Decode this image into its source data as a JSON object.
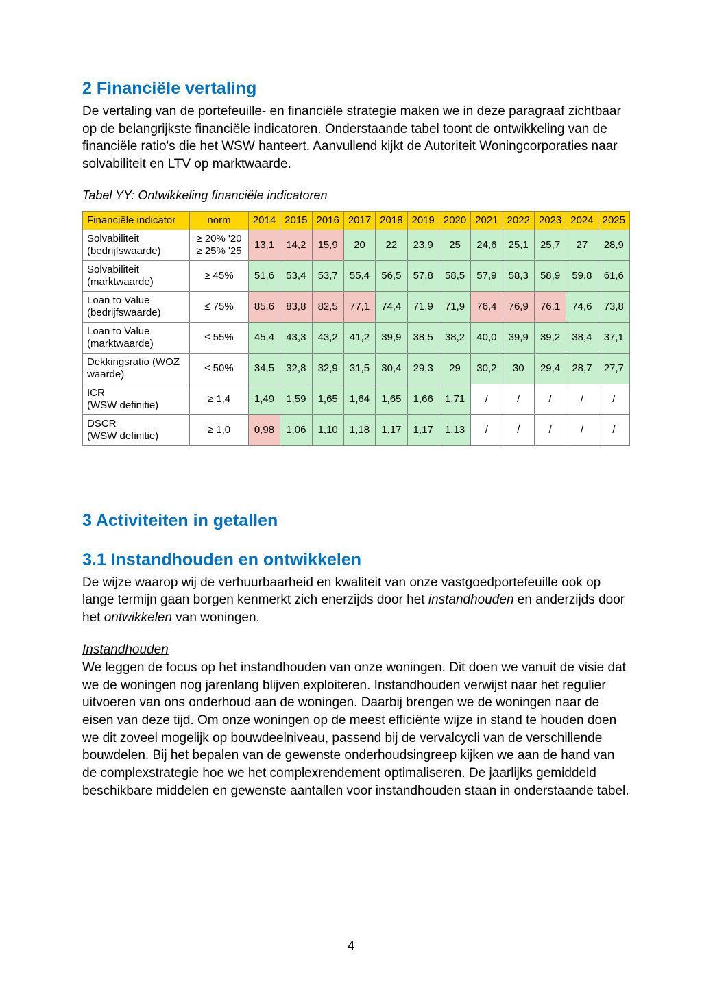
{
  "section2": {
    "heading": "2 Financiële vertaling",
    "para": "De vertaling van de portefeuille- en financiële strategie maken we in deze paragraaf zichtbaar op de belangrijkste financiële indicatoren. Onderstaande tabel toont de ontwikkeling van de financiële ratio's die het WSW hanteert. Aanvullend kijkt de Autoriteit Woningcorporaties naar solvabiliteit en LTV op marktwaarde."
  },
  "table": {
    "caption": "Tabel YY: Ontwikkeling financiële indicatoren",
    "header": {
      "indicator_label": "Financiële indicator",
      "norm_label": "norm"
    },
    "years": [
      "2014",
      "2015",
      "2016",
      "2017",
      "2018",
      "2019",
      "2020",
      "2021",
      "2022",
      "2023",
      "2024",
      "2025"
    ],
    "rows": [
      {
        "label": "Solvabiliteit (bedrijfswaarde)",
        "norm": "≥ 20% '20\n≥ 25% '25",
        "cells": [
          {
            "v": "13,1",
            "c": "red"
          },
          {
            "v": "14,2",
            "c": "red"
          },
          {
            "v": "15,9",
            "c": "red"
          },
          {
            "v": "20",
            "c": "green"
          },
          {
            "v": "22",
            "c": "green"
          },
          {
            "v": "23,9",
            "c": "green"
          },
          {
            "v": "25",
            "c": "green"
          },
          {
            "v": "24,6",
            "c": "green"
          },
          {
            "v": "25,1",
            "c": "green"
          },
          {
            "v": "25,7",
            "c": "green"
          },
          {
            "v": "27",
            "c": "green"
          },
          {
            "v": "28,9",
            "c": "green"
          }
        ]
      },
      {
        "label": "Solvabiliteit (marktwaarde)",
        "norm": "≥ 45%",
        "cells": [
          {
            "v": "51,6",
            "c": "green"
          },
          {
            "v": "53,4",
            "c": "green"
          },
          {
            "v": "53,7",
            "c": "green"
          },
          {
            "v": "55,4",
            "c": "green"
          },
          {
            "v": "56,5",
            "c": "green"
          },
          {
            "v": "57,8",
            "c": "green"
          },
          {
            "v": "58,5",
            "c": "green"
          },
          {
            "v": "57,9",
            "c": "green"
          },
          {
            "v": "58,3",
            "c": "green"
          },
          {
            "v": "58,9",
            "c": "green"
          },
          {
            "v": "59,8",
            "c": "green"
          },
          {
            "v": "61,6",
            "c": "green"
          }
        ]
      },
      {
        "label": "Loan to Value (bedrijfswaarde)",
        "norm": "≤ 75%",
        "cells": [
          {
            "v": "85,6",
            "c": "red"
          },
          {
            "v": "83,8",
            "c": "red"
          },
          {
            "v": "82,5",
            "c": "red"
          },
          {
            "v": "77,1",
            "c": "red"
          },
          {
            "v": "74,4",
            "c": "green"
          },
          {
            "v": "71,9",
            "c": "green"
          },
          {
            "v": "71,9",
            "c": "green"
          },
          {
            "v": "76,4",
            "c": "red"
          },
          {
            "v": "76,9",
            "c": "red"
          },
          {
            "v": "76,1",
            "c": "red"
          },
          {
            "v": "74,6",
            "c": "green"
          },
          {
            "v": "73,8",
            "c": "green"
          }
        ]
      },
      {
        "label": "Loan to Value (marktwaarde)",
        "norm": "≤ 55%",
        "cells": [
          {
            "v": "45,4",
            "c": "green"
          },
          {
            "v": "43,3",
            "c": "green"
          },
          {
            "v": "43,2",
            "c": "green"
          },
          {
            "v": "41,2",
            "c": "green"
          },
          {
            "v": "39,9",
            "c": "green"
          },
          {
            "v": "38,5",
            "c": "green"
          },
          {
            "v": "38,2",
            "c": "green"
          },
          {
            "v": "40,0",
            "c": "green"
          },
          {
            "v": "39,9",
            "c": "green"
          },
          {
            "v": "39,2",
            "c": "green"
          },
          {
            "v": "38,4",
            "c": "green"
          },
          {
            "v": "37,1",
            "c": "green"
          }
        ]
      },
      {
        "label": "Dekkingsratio (WOZ waarde)",
        "norm": "≤ 50%",
        "cells": [
          {
            "v": "34,5",
            "c": "green"
          },
          {
            "v": "32,8",
            "c": "green"
          },
          {
            "v": "32,9",
            "c": "green"
          },
          {
            "v": "31,5",
            "c": "green"
          },
          {
            "v": "30,4",
            "c": "green"
          },
          {
            "v": "29,3",
            "c": "green"
          },
          {
            "v": "29",
            "c": "green"
          },
          {
            "v": "30,2",
            "c": "green"
          },
          {
            "v": "30",
            "c": "green"
          },
          {
            "v": "29,4",
            "c": "green"
          },
          {
            "v": "28,7",
            "c": "green"
          },
          {
            "v": "27,7",
            "c": "green"
          }
        ]
      },
      {
        "label": "ICR\n(WSW definitie)",
        "norm": "≥ 1,4",
        "cells": [
          {
            "v": "1,49",
            "c": "green"
          },
          {
            "v": "1,59",
            "c": "green"
          },
          {
            "v": "1,65",
            "c": "green"
          },
          {
            "v": "1,64",
            "c": "green"
          },
          {
            "v": "1,65",
            "c": "green"
          },
          {
            "v": "1,66",
            "c": "green"
          },
          {
            "v": "1,71",
            "c": "green"
          },
          {
            "v": "/",
            "c": "none"
          },
          {
            "v": "/",
            "c": "none"
          },
          {
            "v": "/",
            "c": "none"
          },
          {
            "v": "/",
            "c": "none"
          },
          {
            "v": "/",
            "c": "none"
          }
        ]
      },
      {
        "label": "DSCR\n(WSW definitie)",
        "norm": "≥ 1,0",
        "cells": [
          {
            "v": "0,98",
            "c": "red"
          },
          {
            "v": "1,06",
            "c": "green"
          },
          {
            "v": "1,10",
            "c": "green"
          },
          {
            "v": "1,18",
            "c": "green"
          },
          {
            "v": "1,17",
            "c": "green"
          },
          {
            "v": "1,17",
            "c": "green"
          },
          {
            "v": "1,13",
            "c": "green"
          },
          {
            "v": "/",
            "c": "none"
          },
          {
            "v": "/",
            "c": "none"
          },
          {
            "v": "/",
            "c": "none"
          },
          {
            "v": "/",
            "c": "none"
          },
          {
            "v": "/",
            "c": "none"
          }
        ]
      }
    ],
    "colors": {
      "green": "#c6efce",
      "red": "#f4c7c3",
      "none": "#ffffff",
      "header_bg": "#ffd500",
      "border": "#808080",
      "heading_blue": "#0070c0"
    }
  },
  "section3": {
    "heading": "3 Activiteiten in getallen",
    "sub_heading": "3.1 Instandhouden en ontwikkelen",
    "intro_prefix": "De wijze waarop wij de verhuurbaarheid en kwaliteit van onze vastgoedportefeuille ook op lange termijn gaan borgen kenmerkt zich enerzijds door het ",
    "intro_em1": "instandhouden",
    "intro_mid": " en anderzijds door het ",
    "intro_em2": "ontwikkelen",
    "intro_suffix": " van woningen.",
    "sub2_title": "Instandhouden",
    "sub2_para": "We leggen de focus op het instandhouden van onze woningen. Dit doen we vanuit de visie dat we de woningen nog jarenlang blijven exploiteren. Instandhouden verwijst naar het regulier uitvoeren van ons onderhoud aan de woningen. Daarbij brengen we de woningen naar de eisen van deze tijd. Om onze woningen op de meest efficiënte wijze in stand te houden doen we dit zoveel mogelijk op bouwdeelniveau, passend bij de vervalcycli van de verschillende bouwdelen. Bij het bepalen van de gewenste onderhoudsingreep kijken we aan de hand van de complexstrategie hoe we het complexrendement optimaliseren. De jaarlijks gemiddeld beschikbare middelen en gewenste aantallen voor instandhouden staan in onderstaande tabel."
  },
  "page_number": "4"
}
